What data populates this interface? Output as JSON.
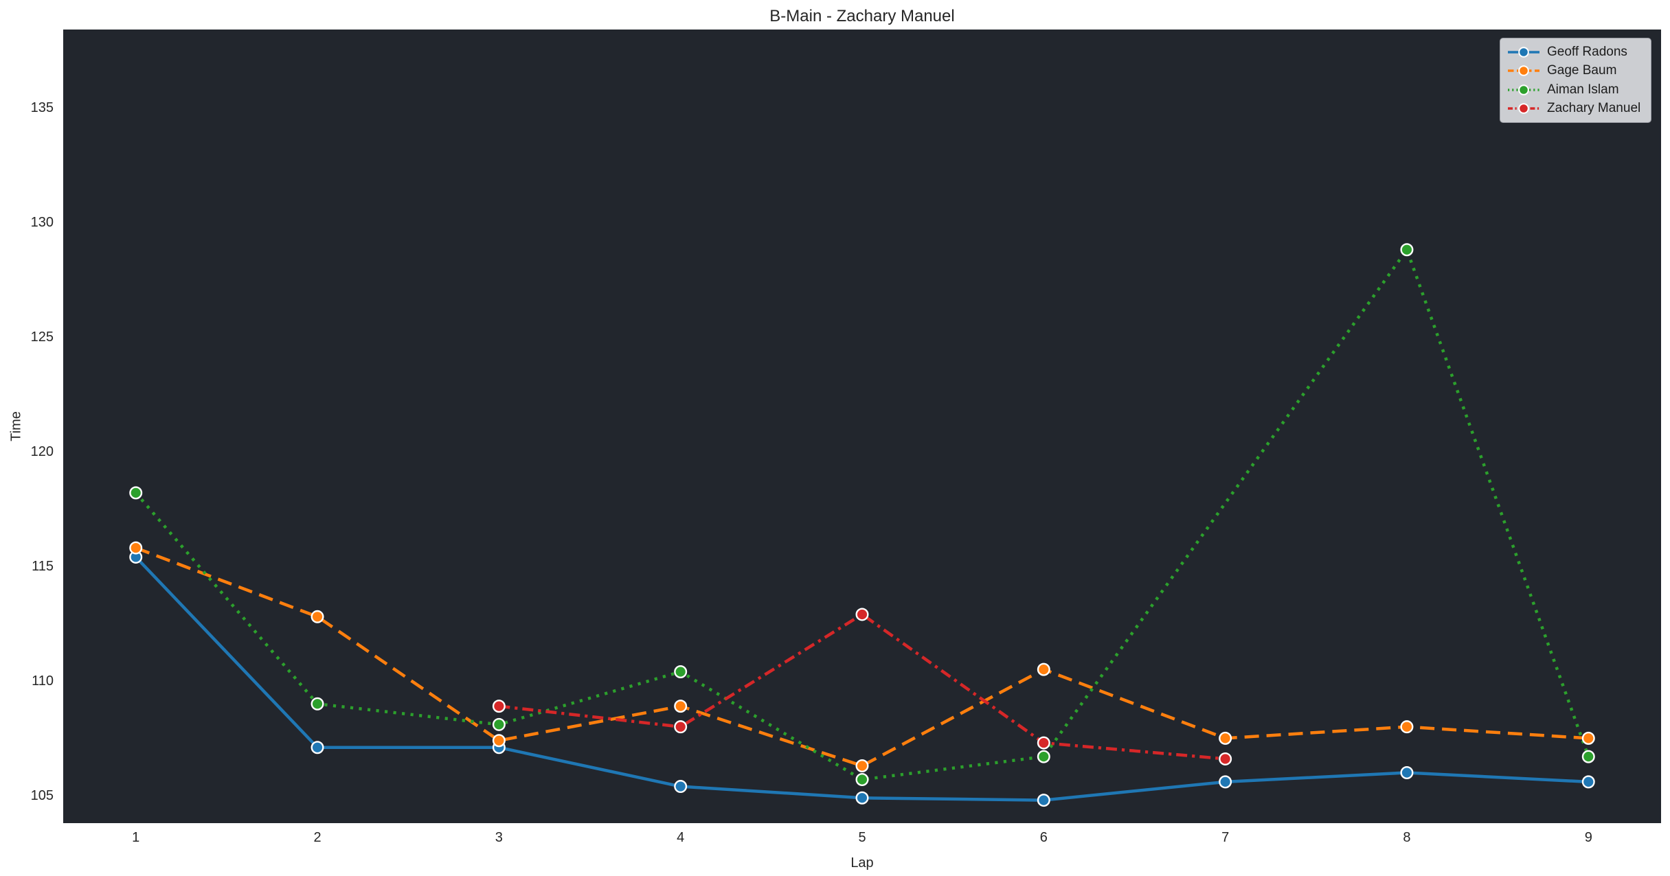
{
  "figure": {
    "title": "B-Main - Zachary Manuel",
    "background": "#ffffff",
    "axes_background": "#22262d",
    "text_color": "#262626"
  },
  "chart_data": {
    "type": "line",
    "title": "B-Main - Zachary Manuel",
    "xlabel": "Lap",
    "ylabel": "Time",
    "x_ticks": [
      1,
      2,
      3,
      4,
      5,
      6,
      7,
      8,
      9
    ],
    "y_ticks": [
      105,
      110,
      115,
      120,
      125,
      130,
      135
    ],
    "xlim": [
      0.6,
      9.4
    ],
    "ylim": [
      103.8,
      138.4
    ],
    "grid": false,
    "legend": {
      "position": "upper-right",
      "background": "#d3d5da",
      "border": "#9a9ca3",
      "entries": [
        "Geoff Radons",
        "Gage Baum",
        "Aiman Islam",
        "Zachary Manuel"
      ]
    },
    "marker_edge_color": "#ffffff",
    "series": [
      {
        "name": "Geoff Radons",
        "color": "#1f77b4",
        "linestyle": "solid",
        "marker": "circle",
        "x": [
          1,
          2,
          3,
          4,
          5,
          6,
          7,
          8,
          9
        ],
        "y": [
          115.4,
          107.1,
          107.1,
          105.4,
          104.9,
          104.8,
          105.6,
          106.0,
          105.6
        ]
      },
      {
        "name": "Gage Baum",
        "color": "#ff7f0e",
        "linestyle": "dashed",
        "marker": "circle",
        "x": [
          1,
          2,
          3,
          4,
          5,
          6,
          7,
          8,
          9
        ],
        "y": [
          115.8,
          112.8,
          107.4,
          108.9,
          106.3,
          110.5,
          107.5,
          108.0,
          107.5
        ]
      },
      {
        "name": "Aiman Islam",
        "color": "#2ca02c",
        "linestyle": "dotted",
        "marker": "circle",
        "x": [
          1,
          2,
          3,
          4,
          5,
          6,
          8,
          9
        ],
        "y": [
          118.2,
          109.0,
          108.1,
          110.4,
          105.7,
          106.7,
          128.8,
          106.7
        ]
      },
      {
        "name": "Zachary Manuel",
        "color": "#d62728",
        "linestyle": "dashdot",
        "marker": "circle",
        "x": [
          3,
          4,
          5,
          6,
          7
        ],
        "y": [
          108.9,
          108.0,
          112.9,
          107.3,
          106.6
        ]
      }
    ]
  }
}
